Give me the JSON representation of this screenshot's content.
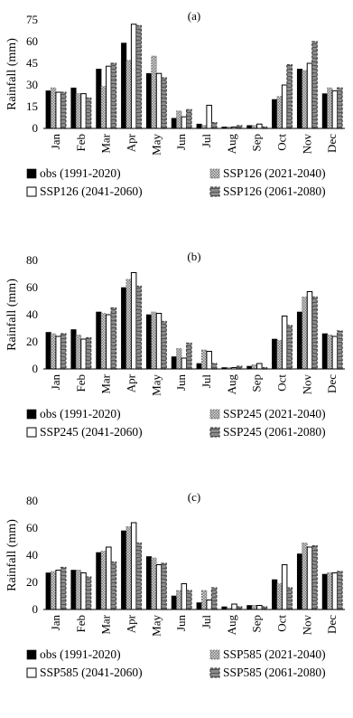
{
  "chart_data": [
    {
      "type": "bar",
      "panel_label": "(a)",
      "ylabel": "Rainfall (mm)",
      "ylim": [
        0,
        75
      ],
      "yticks": [
        0,
        15,
        30,
        45,
        60,
        75
      ],
      "grid": false,
      "legend_position": "bottom",
      "categories": [
        "Jan",
        "Feb",
        "Mar",
        "Apr",
        "May",
        "Jun",
        "Jul",
        "Aug",
        "Sep",
        "Oct",
        "Nov",
        "Dec"
      ],
      "series": [
        {
          "name": "obs (1991-2020)",
          "values": [
            26,
            28,
            41,
            59,
            38,
            7,
            3,
            1,
            2,
            20,
            41,
            24
          ]
        },
        {
          "name": "SSP126 (2021-2040)",
          "values": [
            28,
            24,
            29,
            47,
            50,
            12,
            2,
            1,
            2,
            22,
            40,
            28
          ]
        },
        {
          "name": "SSP126 (2041-2060)",
          "values": [
            25,
            24,
            43,
            72,
            38,
            8,
            16,
            1,
            3,
            30,
            45,
            26
          ]
        },
        {
          "name": "SSP126 (2061-2080)",
          "values": [
            25,
            21,
            45,
            71,
            35,
            13,
            4,
            2,
            1,
            44,
            60,
            28
          ]
        }
      ]
    },
    {
      "type": "bar",
      "panel_label": "(b)",
      "ylabel": "Rainfall (mm)",
      "ylim": [
        0,
        80
      ],
      "yticks": [
        0,
        20,
        40,
        60,
        80
      ],
      "grid": false,
      "legend_position": "bottom",
      "categories": [
        "Jan",
        "Feb",
        "Mar",
        "Apr",
        "May",
        "Jun",
        "Jul",
        "Aug",
        "Sep",
        "Oct",
        "Nov",
        "Dec"
      ],
      "series": [
        {
          "name": "obs (1991-2020)",
          "values": [
            27,
            29,
            42,
            60,
            40,
            9,
            4,
            1,
            2,
            22,
            42,
            26
          ]
        },
        {
          "name": "SSP245 (2021-2040)",
          "values": [
            26,
            25,
            41,
            66,
            42,
            15,
            14,
            1,
            3,
            21,
            53,
            25
          ]
        },
        {
          "name": "SSP245 (2041-2060)",
          "values": [
            24,
            22,
            40,
            71,
            41,
            8,
            13,
            1,
            4,
            39,
            57,
            24
          ]
        },
        {
          "name": "SSP245 (2061-2080)",
          "values": [
            26,
            23,
            45,
            61,
            35,
            19,
            4,
            2,
            1,
            32,
            53,
            28
          ]
        }
      ]
    },
    {
      "type": "bar",
      "panel_label": "(c)",
      "ylabel": "Rainfall (mm)",
      "ylim": [
        0,
        80
      ],
      "yticks": [
        0,
        20,
        40,
        60,
        80
      ],
      "grid": false,
      "legend_position": "bottom",
      "categories": [
        "Jan",
        "Feb",
        "Mar",
        "Apr",
        "May",
        "Jun",
        "Jul",
        "Aug",
        "Sep",
        "Oct",
        "Nov",
        "Dec"
      ],
      "series": [
        {
          "name": "obs (1991-2020)",
          "values": [
            27,
            29,
            42,
            58,
            39,
            10,
            5,
            2,
            3,
            22,
            41,
            26
          ]
        },
        {
          "name": "SSP585 (2021-2040)",
          "values": [
            28,
            29,
            43,
            61,
            38,
            14,
            14,
            1,
            3,
            19,
            49,
            27
          ]
        },
        {
          "name": "SSP585 (2041-2060)",
          "values": [
            29,
            27,
            46,
            64,
            33,
            19,
            7,
            4,
            3,
            33,
            46,
            27
          ]
        },
        {
          "name": "SSP585 (2061-2080)",
          "values": [
            31,
            24,
            35,
            49,
            34,
            14,
            16,
            2,
            2,
            16,
            47,
            28
          ]
        }
      ]
    }
  ]
}
